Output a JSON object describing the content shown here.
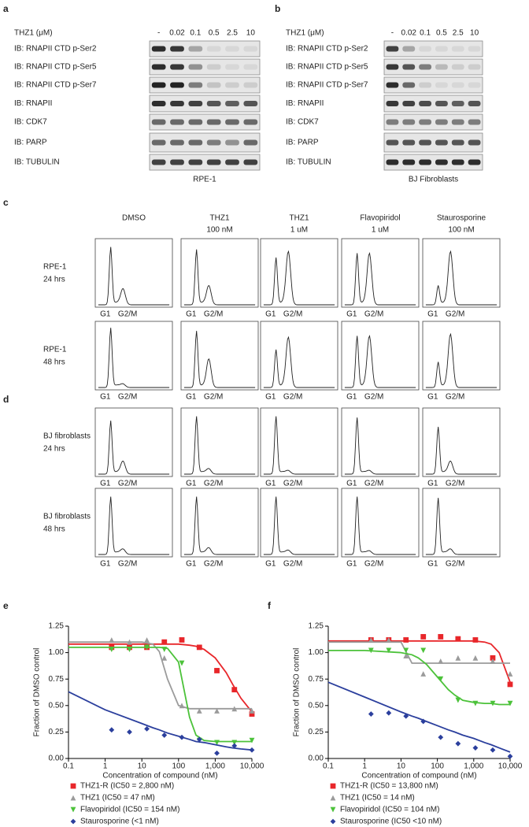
{
  "blots": [
    {
      "panel": "a",
      "conc_label": "THZ1 (μM)",
      "lanes": [
        "-",
        "0.02",
        "0.1",
        "0.5",
        "2.5",
        "10"
      ],
      "cell_line": "RPE-1",
      "rows": [
        {
          "label": "IB: RNAPII CTD p-Ser2",
          "bands": [
            0.9,
            0.85,
            0.3,
            0.05,
            0.05,
            0.05
          ]
        },
        {
          "label": "IB: RNAPII CTD p-Ser5",
          "bands": [
            0.9,
            0.85,
            0.4,
            0.1,
            0.05,
            0.05
          ]
        },
        {
          "label": "IB: RNAPII CTD p-Ser7",
          "bands": [
            0.95,
            0.95,
            0.5,
            0.15,
            0.1,
            0.1
          ]
        },
        {
          "label": "IB: RNAPII",
          "bands": [
            0.9,
            0.85,
            0.8,
            0.7,
            0.65,
            0.7
          ]
        },
        {
          "label": "IB: CDK7",
          "bands": [
            0.6,
            0.6,
            0.6,
            0.6,
            0.6,
            0.6
          ]
        },
        {
          "label": "IB: PARP",
          "bands": [
            0.6,
            0.6,
            0.6,
            0.5,
            0.4,
            0.6
          ]
        },
        {
          "label": "IB: TUBULIN",
          "bands": [
            0.8,
            0.8,
            0.8,
            0.8,
            0.8,
            0.8
          ]
        }
      ]
    },
    {
      "panel": "b",
      "conc_label": "THZ1 (μM)",
      "lanes": [
        "-",
        "0.02",
        "0.1",
        "0.5",
        "2.5",
        "10"
      ],
      "cell_line": "BJ Fibroblasts",
      "rows": [
        {
          "label": "IB: RNAPII CTD p-Ser2",
          "bands": [
            0.8,
            0.3,
            0.05,
            0.05,
            0.05,
            0.05
          ]
        },
        {
          "label": "IB: RNAPII CTD p-Ser5",
          "bands": [
            0.85,
            0.7,
            0.5,
            0.2,
            0.1,
            0.1
          ]
        },
        {
          "label": "IB: RNAPII CTD p-Ser7",
          "bands": [
            0.9,
            0.6,
            0.1,
            0.05,
            0.05,
            0.05
          ]
        },
        {
          "label": "IB: RNAPII",
          "bands": [
            0.85,
            0.8,
            0.75,
            0.7,
            0.65,
            0.7
          ]
        },
        {
          "label": "IB: CDK7",
          "bands": [
            0.5,
            0.5,
            0.5,
            0.5,
            0.5,
            0.5
          ]
        },
        {
          "label": "IB: PARP",
          "bands": [
            0.7,
            0.7,
            0.7,
            0.7,
            0.7,
            0.7
          ]
        },
        {
          "label": "IB: TUBULIN",
          "bands": [
            0.9,
            0.9,
            0.9,
            0.9,
            0.9,
            0.9
          ]
        }
      ]
    }
  ],
  "flow": [
    {
      "panel": "c",
      "columns": [
        [
          "DMSO"
        ],
        [
          "THZ1",
          "100 nM"
        ],
        [
          "THZ1",
          "1 uM"
        ],
        [
          "Flavopiridol",
          "1 uM"
        ],
        [
          "Staurosporine",
          "100 nM"
        ]
      ],
      "rows": [
        {
          "label": [
            "RPE-1",
            "24 hrs"
          ],
          "cells": [
            {
              "g1": "G1",
              "g2m": "G2/M",
              "peaks": [
                0.92,
                0.25
              ]
            },
            {
              "g1": "G1",
              "g2m": "G2/M",
              "peaks": [
                0.88,
                0.3
              ]
            },
            {
              "g1": "G1",
              "g2m": "G2/M",
              "peaks": [
                0.75,
                0.85
              ]
            },
            {
              "g1": "G1",
              "g2m": "G2/M",
              "peaks": [
                0.82,
                0.82
              ]
            },
            {
              "g1": "G1",
              "g2m": "G2/M",
              "peaks": [
                0.3,
                0.85
              ]
            }
          ]
        },
        {
          "label": [
            "RPE-1",
            "48 hrs"
          ],
          "cells": [
            {
              "g1": "G1",
              "g2m": "G2/M",
              "peaks": [
                0.95,
                0.05
              ]
            },
            {
              "g1": "G1",
              "g2m": "G2/M",
              "peaks": [
                0.9,
                0.45
              ]
            },
            {
              "g1": "G1",
              "g2m": "G2/M",
              "peaks": [
                0.6,
                0.8
              ]
            },
            {
              "g1": "G1",
              "g2m": "G2/M",
              "peaks": [
                0.82,
                0.82
              ]
            },
            {
              "g1": "G1",
              "g2m": "G2/M",
              "peaks": [
                0.4,
                0.85
              ]
            }
          ]
        }
      ]
    },
    {
      "panel": "d",
      "rows": [
        {
          "label": [
            "BJ fibroblasts",
            "24 hrs"
          ],
          "cells": [
            {
              "g1": "G1",
              "g2m": "G2/M",
              "peaks": [
                0.85,
                0.2
              ]
            },
            {
              "g1": "G1",
              "g2m": "G2/M",
              "peaks": [
                0.92,
                0.08
              ]
            },
            {
              "g1": "G1",
              "g2m": "G2/M",
              "peaks": [
                0.92,
                0.05
              ]
            },
            {
              "g1": "G1",
              "g2m": "G2/M",
              "peaks": [
                0.9,
                0.05
              ]
            },
            {
              "g1": "G1",
              "g2m": "G2/M",
              "peaks": [
                0.75,
                0.2
              ]
            }
          ]
        },
        {
          "label": [
            "BJ fibroblasts",
            "48 hrs"
          ],
          "cells": [
            {
              "g1": "G1",
              "g2m": "G2/M",
              "peaks": [
                0.92,
                0.08
              ]
            },
            {
              "g1": "G1",
              "g2m": "G2/M",
              "peaks": [
                0.92,
                0.1
              ]
            },
            {
              "g1": "G1",
              "g2m": "G2/M",
              "peaks": [
                0.92,
                0.06
              ]
            },
            {
              "g1": "G1",
              "g2m": "G2/M",
              "peaks": [
                0.92,
                0.05
              ]
            },
            {
              "g1": "G1",
              "g2m": "G2/M",
              "peaks": [
                0.9,
                0.08
              ]
            }
          ]
        }
      ]
    }
  ],
  "chart_data": [
    {
      "type": "scatter",
      "panel": "e",
      "xscale": "log",
      "xlabel": "Concentration of compound (nM)",
      "ylabel": "Fraction of DMSO control",
      "xlim": [
        0.1,
        10000
      ],
      "xticks": [
        0.1,
        1,
        10,
        100,
        {
          "value": 1000,
          "label": "1,000"
        },
        {
          "value": 10000,
          "label": "10,000"
        }
      ],
      "ylim": [
        0,
        1.25
      ],
      "yticks": [
        {
          "value": 0,
          "label": "0.00"
        },
        {
          "value": 0.25,
          "label": "0.25"
        },
        {
          "value": 0.5,
          "label": "0.50"
        },
        {
          "value": 0.75,
          "label": "0.75"
        },
        {
          "value": 1,
          "label": "1.00"
        },
        {
          "value": 1.25,
          "label": "1.25"
        }
      ],
      "x": [
        1.5,
        4.6,
        13.7,
        41,
        123,
        370,
        1111,
        3333,
        10000
      ],
      "fit_x": [
        0.1,
        1,
        10,
        20,
        30,
        50,
        100,
        200,
        300,
        500,
        1000,
        2000,
        3000,
        5000,
        10000
      ],
      "series": [
        {
          "name": "THZ1-R (IC50 = 2,800 nM)",
          "color": "#e8262a",
          "marker": "square",
          "values": [
            1.05,
            1.05,
            1.05,
            1.1,
            1.12,
            1.05,
            0.83,
            0.65,
            0.42
          ],
          "fit": [
            1.08,
            1.08,
            1.08,
            1.08,
            1.08,
            1.08,
            1.08,
            1.07,
            1.06,
            1.03,
            0.95,
            0.81,
            0.7,
            0.57,
            0.44
          ]
        },
        {
          "name": "THZ1 (IC50 = 47 nM)",
          "color": "#9b9b9b",
          "marker": "triangle",
          "values": [
            1.12,
            1.1,
            1.12,
            0.95,
            0.5,
            0.45,
            0.45,
            0.47,
            0.45
          ],
          "fit": [
            1.1,
            1.1,
            1.1,
            1.08,
            1.01,
            0.75,
            0.5,
            0.47,
            0.47,
            0.47,
            0.47,
            0.47,
            0.47,
            0.47,
            0.47
          ]
        },
        {
          "name": "Flavopiridol (IC50 = 154 nM)",
          "color": "#4cc23a",
          "marker": "triangle-down",
          "values": [
            1.03,
            1.03,
            1.05,
            1.03,
            0.9,
            0.17,
            0.15,
            0.15,
            0.17
          ],
          "fit": [
            1.05,
            1.05,
            1.05,
            1.05,
            1.05,
            1.04,
            0.91,
            0.39,
            0.22,
            0.17,
            0.16,
            0.16,
            0.16,
            0.16,
            0.16
          ]
        },
        {
          "name": "Staurosporine (<1 nM)",
          "color": "#2b3f9d",
          "marker": "diamond",
          "values": [
            0.27,
            0.25,
            0.28,
            0.22,
            0.2,
            0.18,
            0.05,
            0.12,
            0.08
          ],
          "fit": [
            0.63,
            0.46,
            0.33,
            0.29,
            0.27,
            0.24,
            0.21,
            0.18,
            0.16,
            0.15,
            0.13,
            0.11,
            0.1,
            0.09,
            0.08
          ]
        }
      ]
    },
    {
      "type": "scatter",
      "panel": "f",
      "xscale": "log",
      "xlabel": "Concentration of compound (nM)",
      "ylabel": "Fraction of DMSO control",
      "xlim": [
        0.1,
        10000
      ],
      "xticks": [
        0.1,
        1,
        10,
        100,
        {
          "value": 1000,
          "label": "1,000"
        },
        {
          "value": 10000,
          "label": "10,000"
        }
      ],
      "ylim": [
        0,
        1.25
      ],
      "yticks": [
        {
          "value": 0,
          "label": "0.00"
        },
        {
          "value": 0.25,
          "label": "0.25"
        },
        {
          "value": 0.5,
          "label": "0.50"
        },
        {
          "value": 0.75,
          "label": "0.75"
        },
        {
          "value": 1,
          "label": "1.00"
        },
        {
          "value": 1.25,
          "label": "1.25"
        }
      ],
      "x": [
        1.5,
        4.6,
        13.7,
        41,
        123,
        370,
        1111,
        3333,
        10000
      ],
      "fit_x": [
        0.1,
        1,
        10,
        20,
        30,
        50,
        100,
        200,
        300,
        500,
        1000,
        2000,
        3000,
        5000,
        10000
      ],
      "series": [
        {
          "name": "THZ1-R (IC50 = 13,800 nM)",
          "color": "#e8262a",
          "marker": "square",
          "values": [
            1.12,
            1.12,
            1.12,
            1.15,
            1.15,
            1.13,
            1.12,
            0.95,
            0.7
          ],
          "fit": [
            1.11,
            1.11,
            1.11,
            1.11,
            1.11,
            1.11,
            1.11,
            1.11,
            1.11,
            1.11,
            1.11,
            1.1,
            1.08,
            1.0,
            0.72
          ]
        },
        {
          "name": "THZ1 (IC50 = 14 nM)",
          "color": "#9b9b9b",
          "marker": "triangle",
          "values": [
            1.12,
            1.12,
            0.97,
            0.8,
            0.92,
            0.95,
            0.95,
            0.92,
            0.8
          ],
          "fit": [
            1.1,
            1.1,
            1.1,
            0.9,
            0.9,
            0.9,
            0.9,
            0.9,
            0.9,
            0.9,
            0.9,
            0.9,
            0.9,
            0.9,
            0.9
          ]
        },
        {
          "name": "Flavopiridol (IC50 = 104 nM)",
          "color": "#4cc23a",
          "marker": "triangle-down",
          "values": [
            1.02,
            1.02,
            1.02,
            1.02,
            0.75,
            0.55,
            0.52,
            0.52,
            0.52
          ],
          "fit": [
            1.02,
            1.02,
            1.0,
            0.98,
            0.95,
            0.89,
            0.77,
            0.65,
            0.6,
            0.55,
            0.53,
            0.52,
            0.52,
            0.51,
            0.51
          ]
        },
        {
          "name": "Staurosporine (IC50 <10 nM)",
          "color": "#2b3f9d",
          "marker": "diamond",
          "values": [
            0.42,
            0.43,
            0.4,
            0.35,
            0.2,
            0.14,
            0.1,
            0.08,
            0.02
          ],
          "fit": [
            0.72,
            0.58,
            0.44,
            0.4,
            0.38,
            0.35,
            0.31,
            0.27,
            0.25,
            0.22,
            0.19,
            0.15,
            0.13,
            0.1,
            0.06
          ]
        }
      ]
    }
  ]
}
